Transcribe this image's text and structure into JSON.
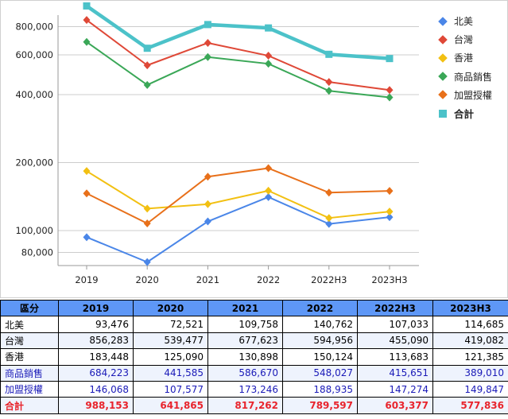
{
  "colors": {
    "北美": "#4a86e8",
    "台灣": "#df4837",
    "香港": "#f2c012",
    "商品銷售": "#3aa757",
    "加盟授權": "#e8701a",
    "合計": "#4cc2c9",
    "table_header": "#5e97f6",
    "table_total_text": "#e8242c",
    "table_highlight_text": "#1a1ab8"
  },
  "chart_data": {
    "type": "line",
    "y_scale": "log",
    "ylim": [
      70000,
      900000
    ],
    "yticks": [
      80000,
      100000,
      200000,
      400000,
      600000,
      800000
    ],
    "ytick_labels": [
      "80,000",
      "100,000",
      "200,000",
      "400,000",
      "600,000",
      "800,000"
    ],
    "categories": [
      "2019",
      "2020",
      "2021",
      "2022",
      "2022H3",
      "2023H3"
    ],
    "grid": "horizontal",
    "legend_position": "right",
    "series": [
      {
        "name": "北美",
        "marker": "diamond",
        "values": [
          93476,
          72521,
          109758,
          140762,
          107033,
          114685
        ]
      },
      {
        "name": "台灣",
        "marker": "diamond",
        "values": [
          856283,
          539477,
          677623,
          594956,
          455090,
          419082
        ]
      },
      {
        "name": "香港",
        "marker": "diamond",
        "values": [
          183448,
          125090,
          130898,
          150124,
          113683,
          121385
        ]
      },
      {
        "name": "商品銷售",
        "marker": "diamond",
        "values": [
          684223,
          441585,
          586670,
          548027,
          415651,
          389010
        ]
      },
      {
        "name": "加盟授權",
        "marker": "diamond",
        "values": [
          146068,
          107577,
          173246,
          188935,
          147274,
          149847
        ]
      },
      {
        "name": "合計",
        "marker": "square",
        "values": [
          988153,
          641865,
          817262,
          789597,
          603377,
          577836
        ]
      }
    ]
  },
  "table": {
    "header_label": "區分",
    "columns": [
      "2019",
      "2020",
      "2021",
      "2022",
      "2022H3",
      "2023H3"
    ],
    "rows": [
      {
        "label": "北美",
        "values": [
          "93,476",
          "72,521",
          "109,758",
          "140,762",
          "107,033",
          "114,685"
        ]
      },
      {
        "label": "台灣",
        "values": [
          "856,283",
          "539,477",
          "677,623",
          "594,956",
          "455,090",
          "419,082"
        ]
      },
      {
        "label": "香港",
        "values": [
          "183,448",
          "125,090",
          "130,898",
          "150,124",
          "113,683",
          "121,385"
        ]
      },
      {
        "label": "商品銷售",
        "values": [
          "684,223",
          "441,585",
          "586,670",
          "548,027",
          "415,651",
          "389,010"
        ]
      },
      {
        "label": "加盟授權",
        "values": [
          "146,068",
          "107,577",
          "173,246",
          "188,935",
          "147,274",
          "149,847"
        ]
      },
      {
        "label": "合計",
        "values": [
          "988,153",
          "641,865",
          "817,262",
          "789,597",
          "603,377",
          "577,836"
        ]
      }
    ]
  }
}
